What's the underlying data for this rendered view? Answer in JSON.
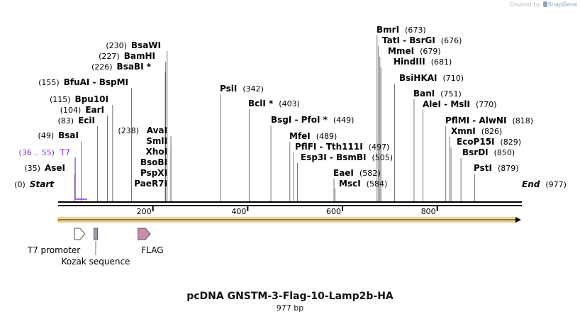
{
  "credit": {
    "prefix": "Created by",
    "brand": "SnapGene"
  },
  "map": {
    "title": "pcDNA GNSTM-3-Flag-10-Lamp2b-HA",
    "length": "977 bp",
    "length_value": 977,
    "scale_ticks": [
      200,
      400,
      600,
      800
    ]
  },
  "sites": [
    {
      "name": "Start",
      "pos": "(0)",
      "value": 0,
      "italic": true
    },
    {
      "name": "AseI",
      "pos": "(35)",
      "value": 35
    },
    {
      "name": "BsaI",
      "pos": "(49)",
      "value": 49
    },
    {
      "name": "EciI",
      "pos": "(83)",
      "value": 83
    },
    {
      "name": "EarI",
      "pos": "(104)",
      "value": 104
    },
    {
      "name": "Bpu10I",
      "pos": "(115)",
      "value": 115
    },
    {
      "name": "BfuAI  -  BspMI",
      "pos": "(155)",
      "value": 155
    },
    {
      "name": "BsaBI *",
      "pos": "(226)",
      "value": 226
    },
    {
      "name": "BamHI",
      "pos": "(227)",
      "value": 227
    },
    {
      "name": "BsaWI",
      "pos": "(230)",
      "value": 230
    },
    {
      "name": "AvaI",
      "pos": "(238)",
      "value": 238
    },
    {
      "name": "SmlI",
      "pos": "",
      "value": 238
    },
    {
      "name": "XhoI",
      "pos": "",
      "value": 238
    },
    {
      "name": "BsoBI",
      "pos": "",
      "value": 238
    },
    {
      "name": "PspXI",
      "pos": "",
      "value": 238
    },
    {
      "name": "PaeR7I",
      "pos": "",
      "value": 238
    },
    {
      "name": "PsiI",
      "pos": "(342)",
      "value": 342
    },
    {
      "name": "BclI *",
      "pos": "(403)",
      "value": 403
    },
    {
      "name": "BsgI  -  PfoI *",
      "pos": "(449)",
      "value": 449
    },
    {
      "name": "MfeI",
      "pos": "(489)",
      "value": 489
    },
    {
      "name": "PflFI  -  Tth111I",
      "pos": "(497)",
      "value": 497
    },
    {
      "name": "Esp3I  -  BsmBI",
      "pos": "(505)",
      "value": 505
    },
    {
      "name": "EaeI",
      "pos": "(582)",
      "value": 582
    },
    {
      "name": "MscI",
      "pos": "(584)",
      "value": 584
    },
    {
      "name": "BmrI",
      "pos": "(673)",
      "value": 673
    },
    {
      "name": "TatI  -  BsrGI",
      "pos": "(676)",
      "value": 676
    },
    {
      "name": "MmeI",
      "pos": "(679)",
      "value": 679
    },
    {
      "name": "HindIII",
      "pos": "(681)",
      "value": 681
    },
    {
      "name": "BsiHKAI",
      "pos": "(710)",
      "value": 710
    },
    {
      "name": "BanI",
      "pos": "(751)",
      "value": 751
    },
    {
      "name": "AleI  -  MslI",
      "pos": "(770)",
      "value": 770
    },
    {
      "name": "PflMI  -  AlwNI",
      "pos": "(818)",
      "value": 818
    },
    {
      "name": "XmnI",
      "pos": "(826)",
      "value": 826
    },
    {
      "name": "EcoP15I",
      "pos": "(829)",
      "value": 829
    },
    {
      "name": "BsrDI",
      "pos": "(850)",
      "value": 850
    },
    {
      "name": "PstI",
      "pos": "(879)",
      "value": 879
    },
    {
      "name": "End",
      "pos": "(977)",
      "value": 977,
      "italic": true
    }
  ],
  "primer": {
    "name": "T7",
    "range": "(36 .. 55)",
    "start": 36,
    "end": 55,
    "color": "#8a2be2"
  },
  "features": [
    {
      "name": "T7 promoter",
      "start": 36,
      "end": 55,
      "color": "#ffffff"
    },
    {
      "name": "Kozak sequence",
      "start": 74,
      "end": 83,
      "color": "#9aa0b0"
    },
    {
      "name": "FLAG",
      "start": 170,
      "end": 193,
      "color": "#c98aac"
    }
  ],
  "orf": {
    "start": 0,
    "end": 977,
    "color": "#f5a623"
  }
}
